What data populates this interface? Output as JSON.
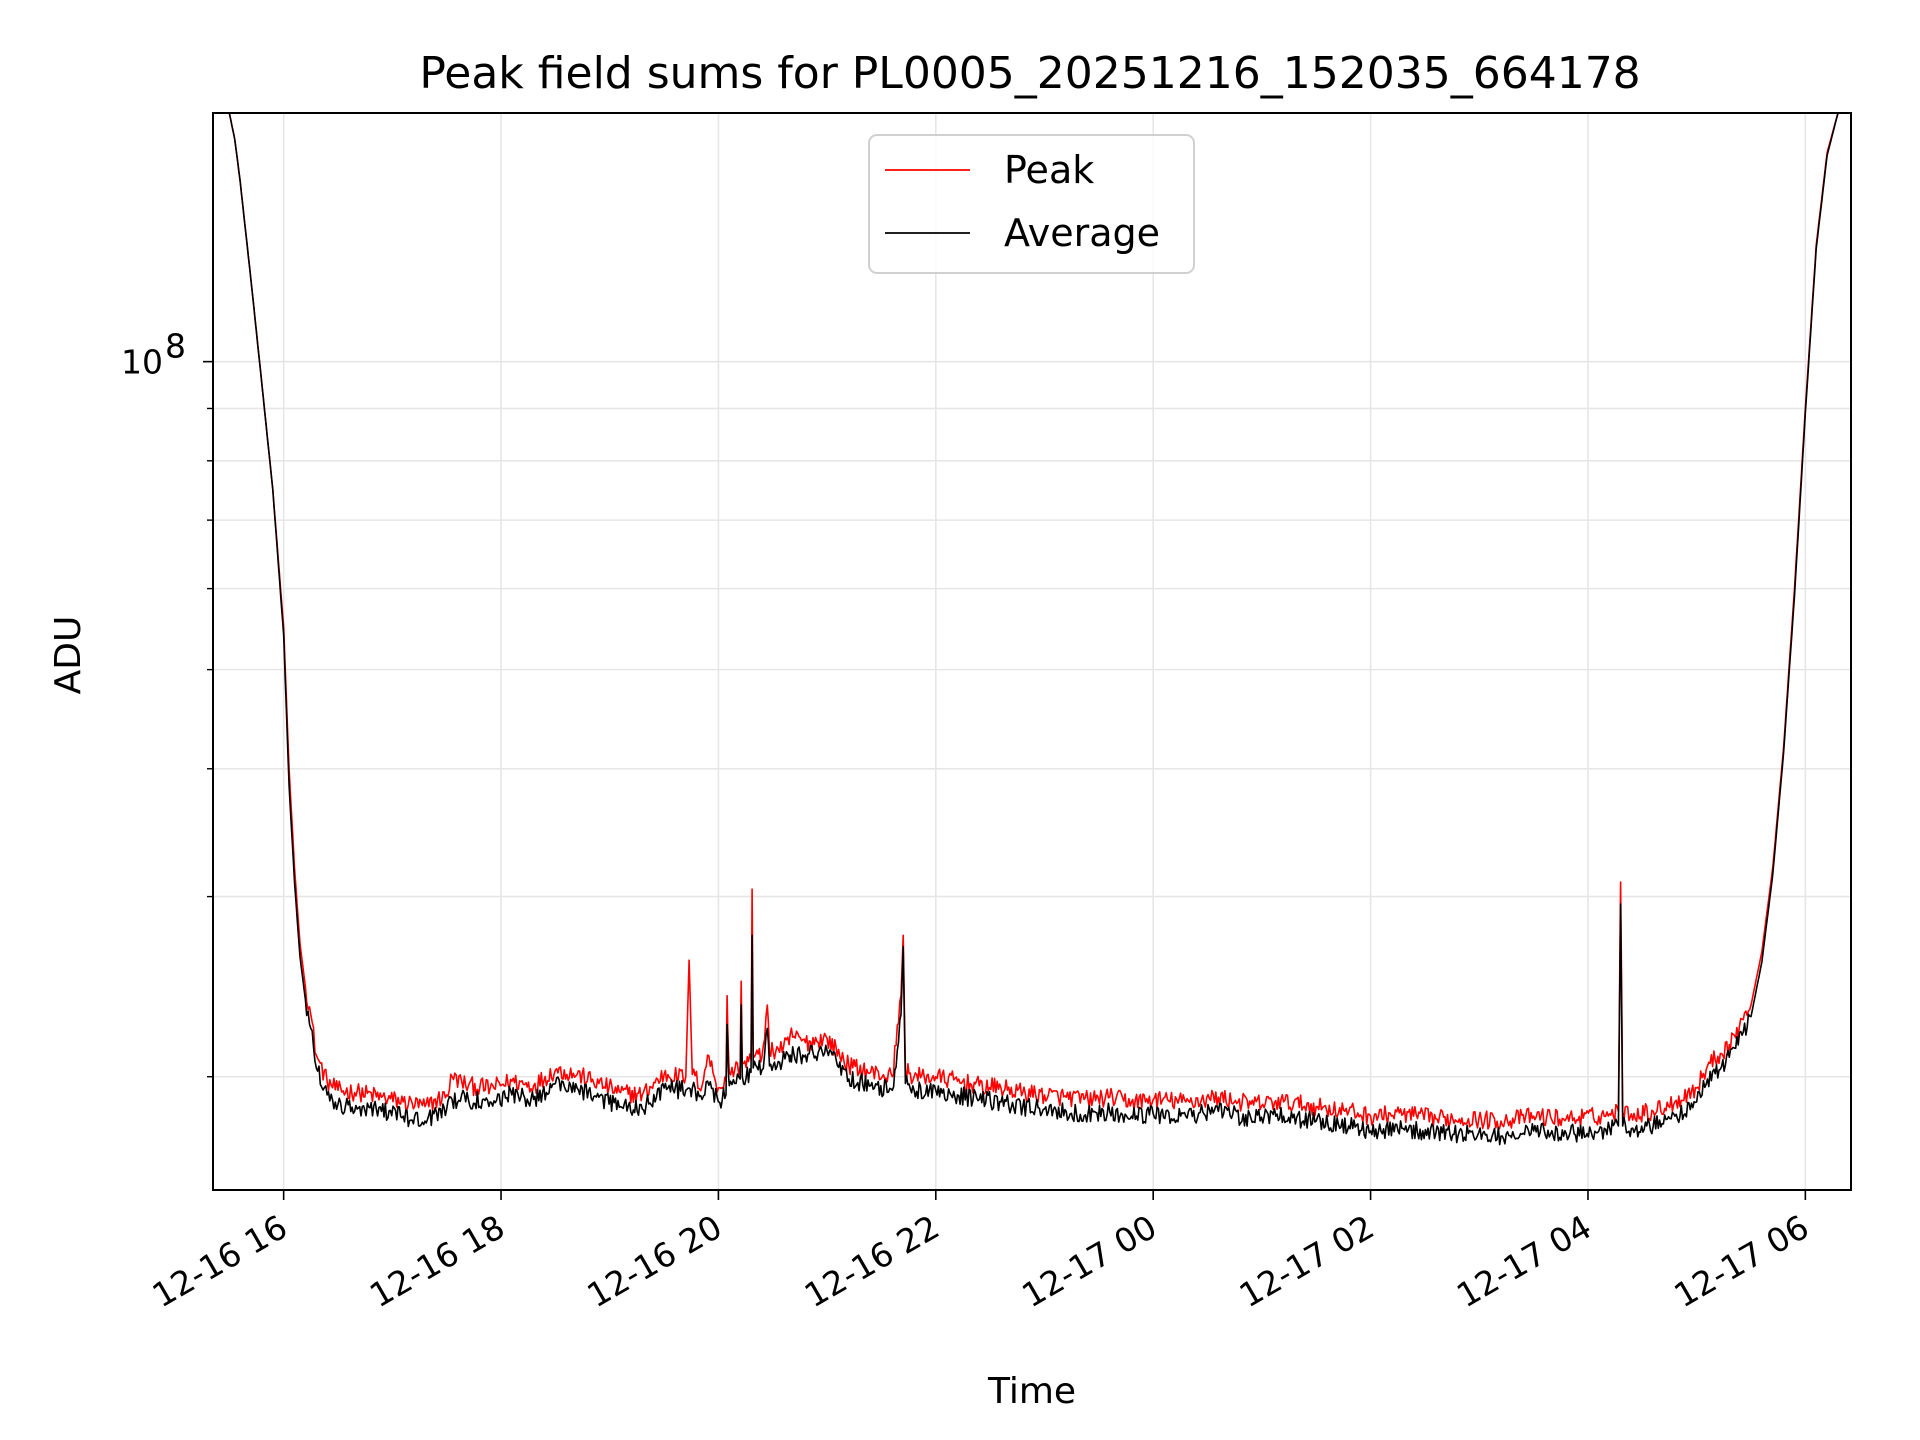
{
  "chart_data": {
    "type": "line",
    "title": "Peak field sums for PL0005_20251216_152035_664178",
    "xlabel": "Time",
    "ylabel": "ADU",
    "y_scale": "log",
    "x_unit": "hours since 12-16 00:00",
    "xlim": [
      15.35,
      30.42
    ],
    "ylim": [
      15500000,
      175000000
    ],
    "grid": true,
    "legend_position": "upper-center",
    "x_ticks": [
      {
        "value": 16,
        "label": "12-16 16"
      },
      {
        "value": 18,
        "label": "12-16 18"
      },
      {
        "value": 20,
        "label": "12-16 20"
      },
      {
        "value": 22,
        "label": "12-16 22"
      },
      {
        "value": 24,
        "label": "12-17 00"
      },
      {
        "value": 26,
        "label": "12-17 02"
      },
      {
        "value": 28,
        "label": "12-17 04"
      },
      {
        "value": 30,
        "label": "12-17 06"
      }
    ],
    "y_major_ticks": [
      {
        "value": 100000000,
        "base": "10",
        "exponent": "8"
      }
    ],
    "y_minor_ticks": [
      20000000,
      30000000,
      40000000,
      50000000,
      60000000,
      70000000,
      80000000,
      90000000
    ],
    "series": [
      {
        "name": "Peak",
        "color": "#ff0000",
        "x": [
          15.5,
          15.55,
          15.6,
          15.7,
          15.8,
          15.9,
          16.0,
          16.05,
          16.1,
          16.15,
          16.2,
          16.25,
          16.3,
          16.4,
          16.5,
          16.7,
          16.9,
          17.1,
          17.3,
          17.5,
          17.55,
          17.7,
          17.9,
          18.1,
          18.3,
          18.5,
          18.7,
          18.9,
          19.1,
          19.3,
          19.5,
          19.7,
          19.73,
          19.76,
          19.85,
          19.9,
          20.0,
          20.07,
          20.08,
          20.09,
          20.1,
          20.15,
          20.2,
          20.21,
          20.22,
          20.3,
          20.31,
          20.32,
          20.4,
          20.45,
          20.47,
          20.55,
          20.65,
          20.66,
          20.8,
          21.0,
          21.2,
          21.4,
          21.6,
          21.68,
          21.7,
          21.72,
          21.8,
          22.0,
          22.2,
          22.4,
          22.6,
          22.8,
          23.0,
          23.2,
          23.4,
          23.6,
          23.8,
          24.0,
          24.3,
          24.6,
          24.9,
          25.2,
          25.5,
          25.8,
          26.0,
          26.3,
          26.6,
          26.9,
          27.2,
          27.5,
          27.8,
          28.1,
          28.2,
          28.28,
          28.3,
          28.32,
          28.4,
          28.6,
          28.8,
          29.0,
          29.1,
          29.3,
          29.5,
          29.6,
          29.7,
          29.8,
          29.9,
          30.0,
          30.1,
          30.2,
          30.3
        ],
        "y": [
          175000000,
          165000000,
          150000000,
          120000000,
          95000000,
          75000000,
          55000000,
          40000000,
          32000000,
          27000000,
          24500000,
          23000000,
          21000000,
          19800000,
          19400000,
          19300000,
          19100000,
          18900000,
          18700000,
          19200000,
          20000000,
          19600000,
          19500000,
          19800000,
          19600000,
          20300000,
          20100000,
          19700000,
          19300000,
          19200000,
          20100000,
          20000000,
          26000000,
          20100000,
          19600000,
          21000000,
          19500000,
          19800000,
          24000000,
          21500000,
          20200000,
          20300000,
          20500000,
          24800000,
          20600000,
          20800000,
          30500000,
          21000000,
          20900000,
          23500000,
          21100000,
          21300000,
          21500000,
          22000000,
          21600000,
          21800000,
          20500000,
          20200000,
          20000000,
          24000000,
          27500000,
          20300000,
          20000000,
          20000000,
          19800000,
          19600000,
          19500000,
          19300000,
          19200000,
          19100000,
          19000000,
          19100000,
          18900000,
          19000000,
          18900000,
          19100000,
          18800000,
          18900000,
          18700000,
          18500000,
          18300000,
          18400000,
          18200000,
          18200000,
          18100000,
          18300000,
          18200000,
          18300000,
          18400000,
          18500000,
          31000000,
          18500000,
          18400000,
          18500000,
          18900000,
          19500000,
          20500000,
          21500000,
          23500000,
          26500000,
          32000000,
          42000000,
          60000000,
          90000000,
          130000000,
          160000000,
          175000000
        ]
      },
      {
        "name": "Average",
        "color": "#000000",
        "x": [
          15.5,
          15.55,
          15.6,
          15.7,
          15.8,
          15.9,
          16.0,
          16.05,
          16.1,
          16.15,
          16.2,
          16.25,
          16.3,
          16.4,
          16.5,
          16.7,
          16.9,
          17.1,
          17.3,
          17.5,
          17.55,
          17.7,
          17.9,
          18.1,
          18.3,
          18.5,
          18.7,
          18.9,
          19.1,
          19.3,
          19.5,
          19.7,
          19.73,
          19.76,
          19.85,
          19.9,
          20.0,
          20.07,
          20.08,
          20.09,
          20.1,
          20.15,
          20.2,
          20.21,
          20.22,
          20.3,
          20.31,
          20.32,
          20.4,
          20.45,
          20.47,
          20.55,
          20.65,
          20.66,
          20.8,
          21.0,
          21.2,
          21.4,
          21.6,
          21.68,
          21.7,
          21.72,
          21.8,
          22.0,
          22.2,
          22.4,
          22.6,
          22.8,
          23.0,
          23.2,
          23.4,
          23.6,
          23.8,
          24.0,
          24.3,
          24.6,
          24.9,
          25.2,
          25.5,
          25.8,
          26.0,
          26.3,
          26.6,
          26.9,
          27.2,
          27.5,
          27.8,
          28.1,
          28.2,
          28.28,
          28.3,
          28.32,
          28.4,
          28.6,
          28.8,
          29.0,
          29.1,
          29.3,
          29.5,
          29.6,
          29.7,
          29.8,
          29.9,
          30.0,
          30.1,
          30.2,
          30.3
        ],
        "y": [
          175000000,
          165000000,
          150000000,
          120000000,
          95000000,
          75000000,
          54000000,
          38500000,
          31000000,
          26200000,
          23800000,
          22300000,
          20400000,
          19200000,
          18800000,
          18700000,
          18500000,
          18300000,
          18100000,
          18600000,
          19000000,
          19000000,
          18900000,
          19200000,
          19000000,
          19700000,
          19500000,
          19100000,
          18700000,
          18600000,
          19500000,
          19400000,
          19500000,
          19500000,
          19000000,
          19800000,
          18900000,
          19200000,
          22500000,
          20500000,
          19600000,
          19700000,
          19900000,
          23500000,
          20000000,
          20200000,
          27500000,
          20400000,
          20300000,
          22300000,
          20500000,
          20700000,
          20900000,
          21000000,
          21000000,
          21200000,
          19900000,
          19600000,
          19400000,
          23000000,
          26800000,
          19700000,
          19400000,
          19400000,
          19200000,
          19000000,
          18900000,
          18700000,
          18600000,
          18500000,
          18400000,
          18500000,
          18300000,
          18400000,
          18300000,
          18500000,
          18200000,
          18300000,
          18100000,
          17900000,
          17700000,
          17800000,
          17600000,
          17600000,
          17500000,
          17700000,
          17600000,
          17700000,
          17800000,
          17900000,
          29500000,
          17900000,
          17800000,
          17900000,
          18300000,
          18900000,
          19900000,
          20900000,
          22900000,
          25900000,
          31500000,
          41500000,
          59000000,
          89000000,
          129000000,
          159000000,
          175000000
        ]
      }
    ]
  }
}
